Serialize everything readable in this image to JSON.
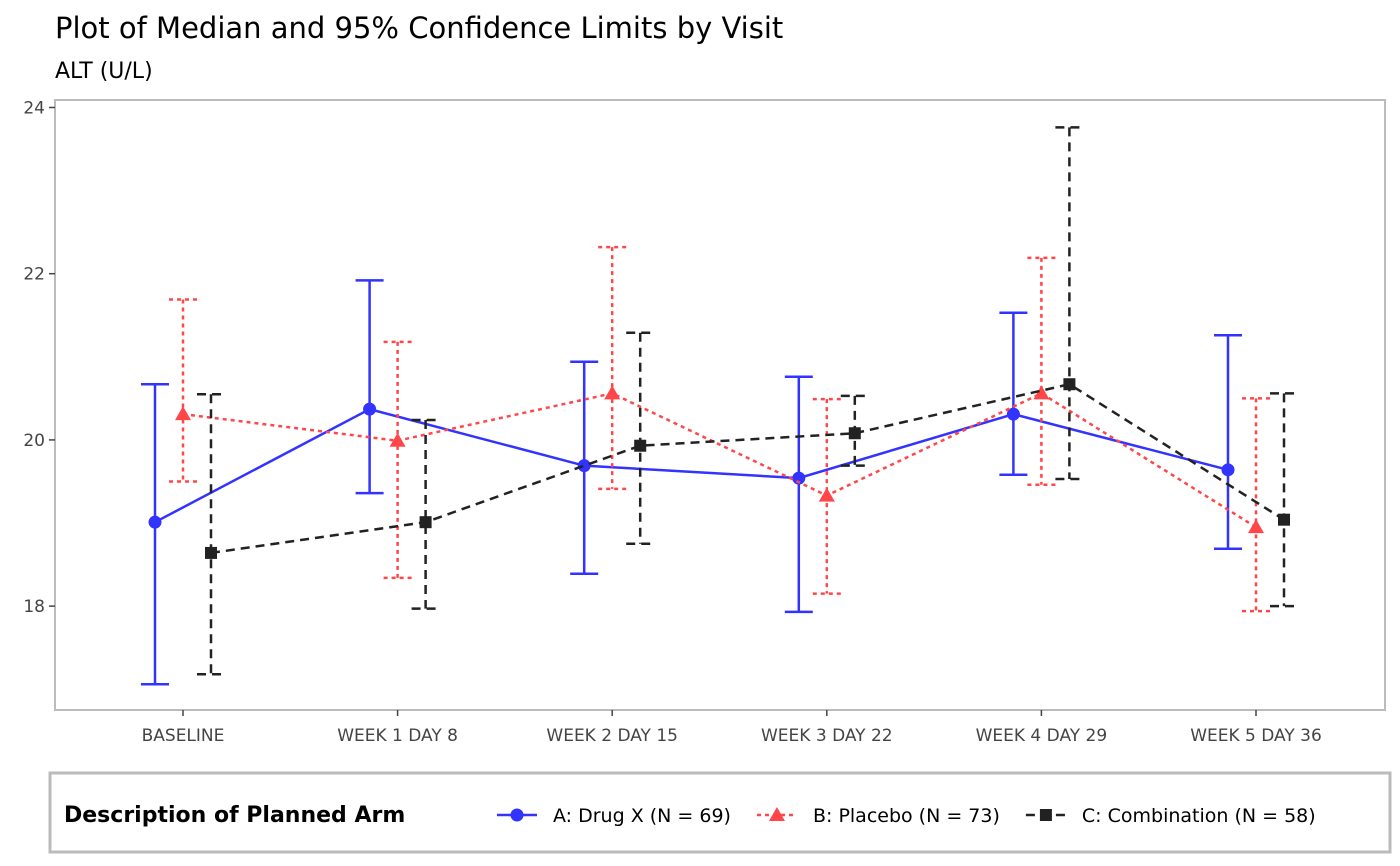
{
  "chart_data": {
    "type": "line",
    "title": "Plot of Median and 95% Confidence Limits by Visit",
    "subtitle": "ALT (U/L)",
    "xlabel": "",
    "ylabel": "",
    "categories": [
      "BASELINE",
      "WEEK 1 DAY 8",
      "WEEK 2 DAY 15",
      "WEEK 3 DAY 22",
      "WEEK 4 DAY 29",
      "WEEK 5 DAY 36"
    ],
    "ylim": [
      16.75,
      24.09
    ],
    "yticks": [
      18,
      20,
      22,
      24
    ],
    "grid": false,
    "legend": {
      "title": "Description of Planned Arm",
      "placement": "bottom"
    },
    "series": [
      {
        "name": "A: Drug X (N = 69)",
        "color": "#3333FF",
        "linestyle": "solid",
        "marker": "circle",
        "median": [
          19.01,
          20.37,
          19.69,
          19.54,
          20.31,
          19.64
        ],
        "upper": [
          20.67,
          21.92,
          20.94,
          20.76,
          21.53,
          21.26
        ],
        "lower": [
          17.06,
          19.36,
          18.39,
          17.93,
          19.58,
          18.69
        ]
      },
      {
        "name": "B: Placebo (N = 73)",
        "color": "#FF474A",
        "linestyle": "dotted",
        "marker": "triangle",
        "median": [
          20.31,
          19.99,
          20.56,
          19.33,
          20.56,
          18.95
        ],
        "upper": [
          21.69,
          21.18,
          22.32,
          20.49,
          22.19,
          20.5
        ],
        "lower": [
          19.5,
          18.34,
          19.41,
          18.15,
          19.46,
          17.94
        ]
      },
      {
        "name": "C: Combination (N = 58)",
        "color": "#222222",
        "linestyle": "dashed",
        "marker": "square",
        "median": [
          18.64,
          19.01,
          19.93,
          20.08,
          20.67,
          19.04
        ],
        "upper": [
          20.55,
          20.24,
          21.29,
          20.53,
          23.76,
          20.56
        ],
        "lower": [
          17.18,
          17.97,
          18.75,
          19.69,
          19.53,
          18.0
        ]
      }
    ]
  }
}
